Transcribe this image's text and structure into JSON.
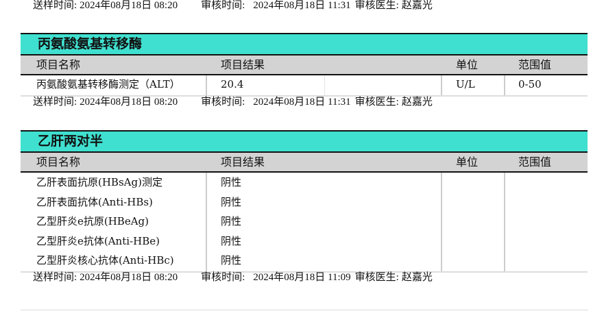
{
  "columns": {
    "name": "项目名称",
    "result": "项目结果",
    "unit": "单位",
    "range": "范围值"
  },
  "labels": {
    "send_time": "送样时间:",
    "review_time": "审核时间:",
    "reviewer": "审核医生:"
  },
  "top_footer": {
    "send_time": "2024年08月18日 08:20",
    "review_time": "2024年08月18日 11:31",
    "reviewer": "赵嘉光"
  },
  "sections": [
    {
      "title": "丙氨酸氨基转移酶",
      "rows": [
        {
          "name": "丙氨酸氨基转移酶测定（ALT）",
          "result": "20.4",
          "unit": "U/L",
          "range": "0-50"
        }
      ],
      "footer": {
        "send_time": "2024年08月18日 08:20",
        "review_time": "2024年08月18日 11:31",
        "reviewer": "赵嘉光"
      }
    },
    {
      "title": "乙肝两对半",
      "rows": [
        {
          "name": "乙肝表面抗原(HBsAg)测定",
          "result": "阴性",
          "unit": "",
          "range": ""
        },
        {
          "name": "乙肝表面抗体(Anti-HBs)",
          "result": "阴性",
          "unit": "",
          "range": ""
        },
        {
          "name": "乙型肝炎e抗原(HBeAg)",
          "result": "阴性",
          "unit": "",
          "range": ""
        },
        {
          "name": "乙型肝炎e抗体(Anti-HBe)",
          "result": "阴性",
          "unit": "",
          "range": ""
        },
        {
          "name": "乙型肝炎核心抗体(Anti-HBc)",
          "result": "阴性",
          "unit": "",
          "range": ""
        }
      ],
      "footer": {
        "send_time": "2024年08月18日 08:20",
        "review_time": "2024年08月18日 11:09",
        "reviewer": "赵嘉光"
      }
    }
  ],
  "colors": {
    "section_title_bg": "#40E0D0",
    "header_bg": "#D3D3D3"
  }
}
